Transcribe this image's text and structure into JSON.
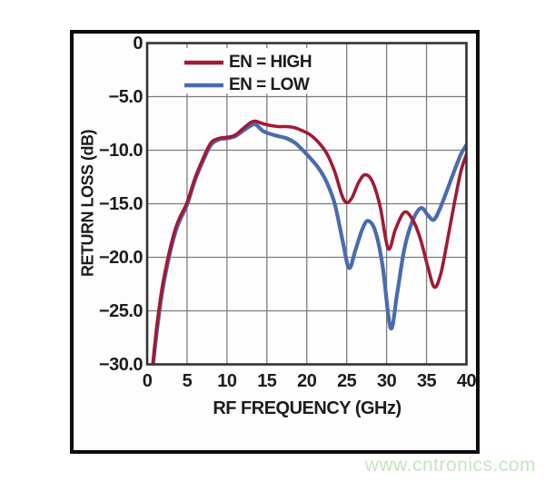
{
  "watermark": "www.cntronics.com",
  "colors": {
    "high": "#a01a35",
    "low": "#4a6bae",
    "grid": "#7d7d7d",
    "plot_border": "#333333",
    "frame_border": "#0b0b0b",
    "text": "#1c1c1c",
    "watermark": "#c4e6bd",
    "plot_background": "#fdfdfd"
  },
  "chart_data": {
    "type": "line",
    "title": "",
    "xlabel": "RF FREQUENCY (GHz)",
    "ylabel": "RETURN LOSS (dB)",
    "xlim": [
      0,
      40
    ],
    "ylim": [
      -30,
      0
    ],
    "grid": true,
    "legend_position": "top-left",
    "x_tick_values": [
      0,
      5,
      10,
      15,
      20,
      25,
      30,
      35,
      40
    ],
    "x_tick_labels": [
      "0",
      "5",
      "10",
      "15",
      "20",
      "25",
      "30",
      "35",
      "40"
    ],
    "y_tick_values": [
      0,
      -5,
      -10,
      -15,
      -20,
      -25,
      -30
    ],
    "y_tick_labels": [
      "0",
      "−5.0",
      "−10.0",
      "−15.0",
      "−20.0",
      "−25.0",
      "−30.0"
    ],
    "series": [
      {
        "name": "EN = HIGH",
        "color": "#a01a35",
        "points": [
          [
            0.7,
            -30
          ],
          [
            1.2,
            -26.5
          ],
          [
            1.8,
            -23.2
          ],
          [
            2.4,
            -20.8
          ],
          [
            3,
            -18.8
          ],
          [
            3.6,
            -17.2
          ],
          [
            4.2,
            -16.1
          ],
          [
            5,
            -14.9
          ],
          [
            6,
            -12.6
          ],
          [
            7,
            -10.8
          ],
          [
            8,
            -9.3
          ],
          [
            9,
            -8.9
          ],
          [
            10,
            -8.8
          ],
          [
            11,
            -8.6
          ],
          [
            12,
            -8.0
          ],
          [
            13,
            -7.4
          ],
          [
            13.6,
            -7.3
          ],
          [
            14.4,
            -7.5
          ],
          [
            15.5,
            -7.7
          ],
          [
            16.5,
            -7.8
          ],
          [
            17.5,
            -7.8
          ],
          [
            18.5,
            -7.9
          ],
          [
            19.5,
            -8.2
          ],
          [
            20.5,
            -8.6
          ],
          [
            21.5,
            -9.3
          ],
          [
            22.5,
            -10.3
          ],
          [
            23.5,
            -12.0
          ],
          [
            24.4,
            -14.2
          ],
          [
            25,
            -14.9
          ],
          [
            25.7,
            -14.4
          ],
          [
            26.5,
            -13.0
          ],
          [
            27.3,
            -12.3
          ],
          [
            28.2,
            -12.9
          ],
          [
            29.2,
            -15.3
          ],
          [
            30.2,
            -19.2
          ],
          [
            31.1,
            -17.4
          ],
          [
            32.2,
            -15.8
          ],
          [
            33.2,
            -16.4
          ],
          [
            34.2,
            -18.2
          ],
          [
            35.2,
            -21.0
          ],
          [
            36,
            -22.8
          ],
          [
            36.8,
            -21.5
          ],
          [
            37.6,
            -18.5
          ],
          [
            38.5,
            -14.9
          ],
          [
            39.3,
            -12.0
          ],
          [
            40,
            -10.4
          ]
        ]
      },
      {
        "name": "EN = LOW",
        "color": "#4a6bae",
        "points": [
          [
            0.75,
            -30
          ],
          [
            1.25,
            -26.7
          ],
          [
            1.85,
            -23.4
          ],
          [
            2.45,
            -21.0
          ],
          [
            3.05,
            -19.0
          ],
          [
            3.65,
            -17.4
          ],
          [
            4.25,
            -16.3
          ],
          [
            5,
            -15.1
          ],
          [
            6,
            -12.8
          ],
          [
            7,
            -11.0
          ],
          [
            8,
            -9.5
          ],
          [
            9,
            -9.0
          ],
          [
            10,
            -8.9
          ],
          [
            11,
            -8.7
          ],
          [
            12,
            -8.2
          ],
          [
            13,
            -7.7
          ],
          [
            13.6,
            -7.6
          ],
          [
            14.5,
            -8.2
          ],
          [
            15.5,
            -8.5
          ],
          [
            16.5,
            -8.7
          ],
          [
            17.5,
            -8.9
          ],
          [
            18.5,
            -9.3
          ],
          [
            19.5,
            -10.0
          ],
          [
            20.5,
            -10.8
          ],
          [
            21.5,
            -11.7
          ],
          [
            22.5,
            -13.0
          ],
          [
            23.5,
            -15.0
          ],
          [
            24.5,
            -18.5
          ],
          [
            25.3,
            -21.0
          ],
          [
            26.1,
            -19.3
          ],
          [
            27,
            -17.3
          ],
          [
            27.7,
            -16.6
          ],
          [
            28.6,
            -17.6
          ],
          [
            29.5,
            -20.8
          ],
          [
            30.5,
            -26.6
          ],
          [
            31.3,
            -23.5
          ],
          [
            32.2,
            -19.3
          ],
          [
            33.2,
            -16.7
          ],
          [
            34.3,
            -15.4
          ],
          [
            35.2,
            -16.1
          ],
          [
            35.9,
            -16.5
          ],
          [
            36.6,
            -15.6
          ],
          [
            37.5,
            -13.9
          ],
          [
            38.5,
            -11.9
          ],
          [
            39.3,
            -10.4
          ],
          [
            40,
            -9.5
          ]
        ]
      }
    ]
  }
}
